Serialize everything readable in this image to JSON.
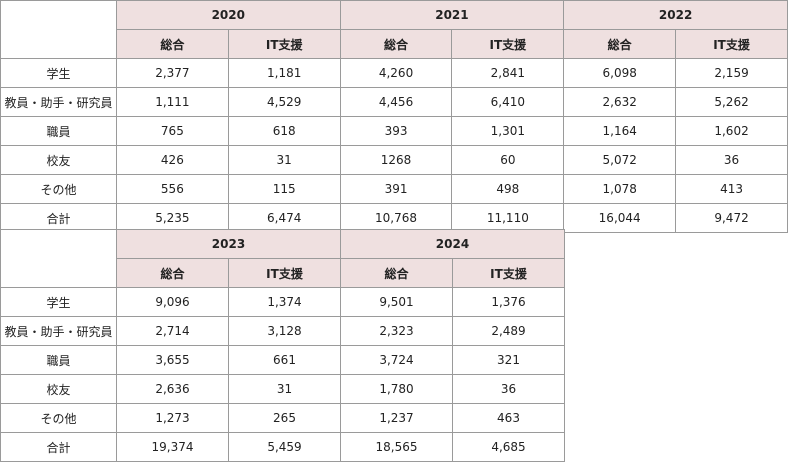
{
  "top": {
    "years": [
      "2020",
      "2021",
      "2022"
    ],
    "sub_headers": [
      "総合",
      "IT支援"
    ],
    "rows": [
      {
        "label": "学生",
        "values": [
          "2,377",
          "1,181",
          "4,260",
          "2,841",
          "6,098",
          "2,159"
        ]
      },
      {
        "label": "教員・助手・研究員",
        "values": [
          "1,111",
          "4,529",
          "4,456",
          "6,410",
          "2,632",
          "5,262"
        ]
      },
      {
        "label": "職員",
        "values": [
          "765",
          "618",
          "393",
          "1,301",
          "1,164",
          "1,602"
        ]
      },
      {
        "label": "校友",
        "values": [
          "426",
          "31",
          "1268",
          "60",
          "5,072",
          "36"
        ]
      },
      {
        "label": "その他",
        "values": [
          "556",
          "115",
          "391",
          "498",
          "1,078",
          "413"
        ]
      },
      {
        "label": "合計",
        "values": [
          "5,235",
          "6,474",
          "10,768",
          "11,110",
          "16,044",
          "9,472"
        ]
      }
    ]
  },
  "bottom": {
    "years": [
      "2023",
      "2024"
    ],
    "sub_headers": [
      "総合",
      "IT支援"
    ],
    "rows": [
      {
        "label": "学生",
        "values": [
          "9,096",
          "1,374",
          "9,501",
          "1,376"
        ]
      },
      {
        "label": "教員・助手・研究員",
        "values": [
          "2,714",
          "3,128",
          "2,323",
          "2,489"
        ]
      },
      {
        "label": "職員",
        "values": [
          "3,655",
          "661",
          "3,724",
          "321"
        ]
      },
      {
        "label": "校友",
        "values": [
          "2,636",
          "31",
          "1,780",
          "36"
        ]
      },
      {
        "label": "その他",
        "values": [
          "1,273",
          "265",
          "1,237",
          "463"
        ]
      },
      {
        "label": "合計",
        "values": [
          "19,374",
          "5,459",
          "18,565",
          "4,685"
        ]
      }
    ]
  }
}
